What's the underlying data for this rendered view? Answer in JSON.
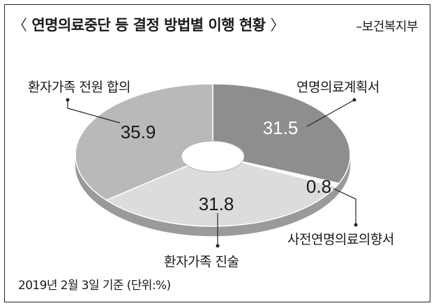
{
  "header": {
    "title": "연명의료중단 등 결정 방법별 이행 현황",
    "bracket_open": "〈",
    "bracket_close": "〉",
    "source": "–보건복지부"
  },
  "footnote": "2019년 2월 3일 기준 (단위:%)",
  "colors": {
    "slice_dark": "#8e8e8e",
    "slice_mid": "#b9b9b9",
    "slice_light": "#dcdcdc",
    "slice_white": "#ffffff",
    "rim": "#9a9a9a",
    "line": "#222222"
  },
  "chart_data": {
    "type": "pie",
    "donut": true,
    "title": "연명의료중단 등 결정 방법별 이행 현황",
    "unit": "%",
    "date": "2019년 2월 3일 기준",
    "slices": [
      {
        "label": "연명의료계획서",
        "value": 31.5
      },
      {
        "label": "사전연명의료의향서",
        "value": 0.8
      },
      {
        "label": "환자가족 진술",
        "value": 31.8
      },
      {
        "label": "환자가족 전원 합의",
        "value": 35.9
      }
    ]
  }
}
